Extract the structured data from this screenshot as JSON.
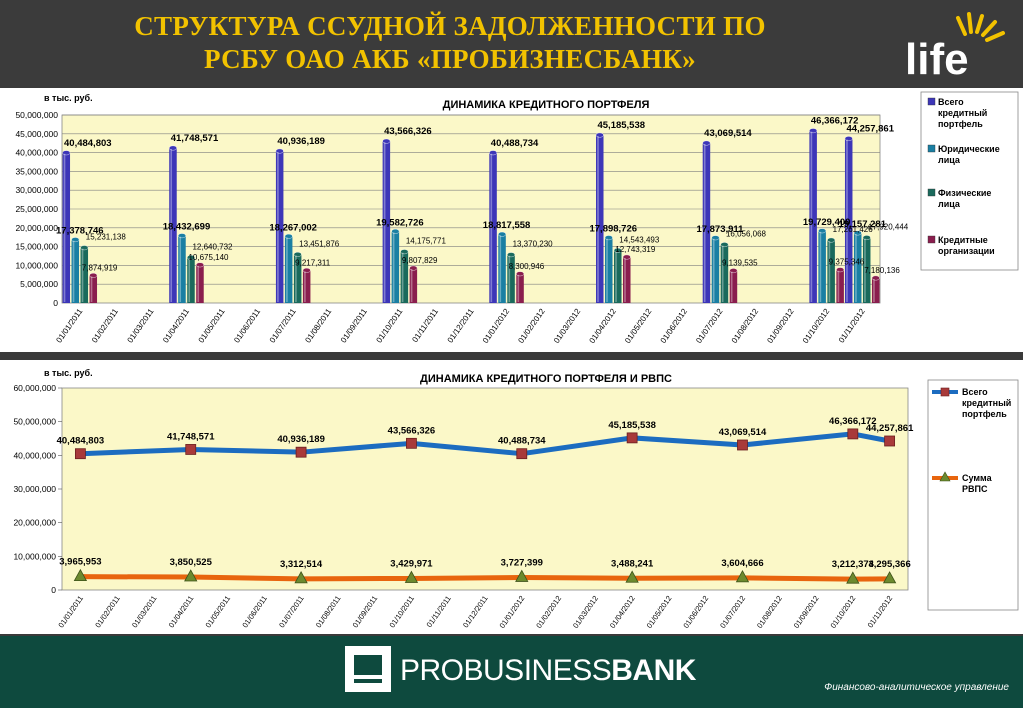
{
  "header": {
    "title_line1": "СТРУКТУРА ССУДНОЙ ЗАДОЛЖЕННОСТИ ПО",
    "title_line2": "РСБУ ОАО АКБ «ПРОБИЗНЕСБАНК»",
    "logo_text": "life"
  },
  "footer": {
    "brand_light": "PROBUSINESS",
    "brand_bold": "BANK",
    "department": "Финансово-аналитическое управление"
  },
  "colors": {
    "header_bg": "#3b3b3b",
    "title": "#f2c200",
    "footer_bg": "#0e4a3e",
    "plot_bg": "#fbf8c8",
    "series_total": "#3d36b8",
    "series_legal": "#1a7fa3",
    "series_individuals": "#1a6a5c",
    "series_credit_org": "#8a1e4e",
    "line_total": "#1c6cc0",
    "line_rvps": "#e8650e"
  },
  "chart_data": [
    {
      "type": "bar",
      "title": "ДИНАМИКА КРЕДИТНОГО ПОРТФЕЛЯ",
      "unit_label": "в тыс. руб.",
      "ylim": [
        0,
        50000000
      ],
      "yticks": [
        "0",
        "5,000,000",
        "10,000,000",
        "15,000,000",
        "20,000,000",
        "25,000,000",
        "30,000,000",
        "35,000,000",
        "40,000,000",
        "45,000,000",
        "50,000,000"
      ],
      "categories": [
        "01/01/2011",
        "01/02/2011",
        "01/03/2011",
        "01/04/2011",
        "01/05/2011",
        "01/06/2011",
        "01/07/2011",
        "01/08/2011",
        "01/09/2011",
        "01/10/2011",
        "01/11/2011",
        "01/12/2011",
        "01/01/2012",
        "01/02/2012",
        "01/03/2012",
        "01/04/2012",
        "01/05/2012",
        "01/06/2012",
        "01/07/2012",
        "01/08/2012",
        "01/09/2012",
        "01/10/2012",
        "01/11/2012"
      ],
      "grid": true,
      "legend": "right",
      "series": [
        {
          "name": "Всего кредитный портфель",
          "values": [
            40484803,
            null,
            null,
            41748571,
            null,
            null,
            40936189,
            null,
            null,
            43566326,
            null,
            null,
            40488734,
            null,
            null,
            45185538,
            null,
            null,
            43069514,
            null,
            null,
            46366172,
            44257861
          ],
          "labels": [
            "40,484,803",
            "",
            "",
            "41,748,571",
            "",
            "",
            "40,936,189",
            "",
            "",
            "43,566,326",
            "",
            "",
            "40,488,734",
            "",
            "",
            "45,185,538",
            "",
            "",
            "43,069,514",
            "",
            "",
            "46,366,172",
            "44,257,861"
          ]
        },
        {
          "name": "Юридические лица",
          "values": [
            17378746,
            null,
            null,
            18432699,
            null,
            null,
            18267002,
            null,
            null,
            19582726,
            null,
            null,
            18817558,
            null,
            null,
            17898726,
            null,
            null,
            17873911,
            null,
            null,
            19729400,
            19157281
          ],
          "labels": [
            "17,378,746",
            "",
            "",
            "18,432,699",
            "",
            "",
            "18,267,002",
            "",
            "",
            "19,582,726",
            "",
            "",
            "18,817,558",
            "",
            "",
            "17,898,726",
            "",
            "",
            "17,873,911",
            "",
            "",
            "19,729,400",
            "19,157,281"
          ]
        },
        {
          "name": "Физические лица",
          "values": [
            15231138,
            null,
            null,
            12640732,
            null,
            null,
            13451876,
            null,
            null,
            14175771,
            null,
            null,
            13370230,
            null,
            null,
            14543493,
            null,
            null,
            16056068,
            null,
            null,
            17261426,
            17920444
          ],
          "labels": [
            "15,231,138",
            "",
            "",
            "12,640,732",
            "",
            "",
            "13,451,876",
            "",
            "",
            "14,175,771",
            "",
            "",
            "13,370,230",
            "",
            "",
            "14,543,493",
            "",
            "",
            "16,056,068",
            "",
            "",
            "17,261,426",
            "17,920,444"
          ]
        },
        {
          "name": "Кредитные организации",
          "values": [
            7874919,
            null,
            null,
            10675140,
            null,
            null,
            9217311,
            null,
            null,
            9807829,
            null,
            null,
            8300946,
            null,
            null,
            12743319,
            null,
            null,
            9139535,
            null,
            null,
            9375346,
            7180136
          ],
          "labels": [
            "7,874,919",
            "",
            "",
            "10,675,140",
            "",
            "",
            "9,217,311",
            "",
            "",
            "9,807,829",
            "",
            "",
            "8,300,946",
            "",
            "",
            "12,743,319",
            "",
            "",
            "9,139,535",
            "",
            "",
            "9,375,346",
            "7,180,136"
          ]
        }
      ]
    },
    {
      "type": "line",
      "title": "ДИНАМИКА КРЕДИТНОГО ПОРТФЕЛЯ И РВПС",
      "unit_label": "в тыс. руб.",
      "ylim": [
        0,
        60000000
      ],
      "yticks": [
        "0",
        "10,000,000",
        "20,000,000",
        "30,000,000",
        "40,000,000",
        "50,000,000",
        "60,000,000"
      ],
      "categories": [
        "01/01/2011",
        "01/02/2011",
        "01/03/2011",
        "01/04/2011",
        "01/05/2011",
        "01/06/2011",
        "01/07/2011",
        "01/08/2011",
        "01/09/2011",
        "01/10/2011",
        "01/11/2011",
        "01/12/2011",
        "01/01/2012",
        "01/02/2012",
        "01/03/2012",
        "01/04/2012",
        "01/05/2012",
        "01/06/2012",
        "01/07/2012",
        "01/08/2012",
        "01/09/2012",
        "01/10/2012",
        "01/11/2012"
      ],
      "grid": false,
      "legend": "right",
      "series": [
        {
          "name": "Всего кредитный портфель",
          "values": [
            40484803,
            null,
            null,
            41748571,
            null,
            null,
            40936189,
            null,
            null,
            43566326,
            null,
            null,
            40488734,
            null,
            null,
            45185538,
            null,
            null,
            43069514,
            null,
            null,
            46366172,
            44257861
          ],
          "labels": [
            "40,484,803",
            "",
            "",
            "41,748,571",
            "",
            "",
            "40,936,189",
            "",
            "",
            "43,566,326",
            "",
            "",
            "40,488,734",
            "",
            "",
            "45,185,538",
            "",
            "",
            "43,069,514",
            "",
            "",
            "46,366,172",
            "44,257,861"
          ]
        },
        {
          "name": "Сумма РВПС",
          "values": [
            3965953,
            null,
            null,
            3850525,
            null,
            null,
            3312514,
            null,
            null,
            3429971,
            null,
            null,
            3727399,
            null,
            null,
            3488241,
            null,
            null,
            3604666,
            null,
            null,
            3212374,
            3295366
          ],
          "labels": [
            "3,965,953",
            "",
            "",
            "3,850,525",
            "",
            "",
            "3,312,514",
            "",
            "",
            "3,429,971",
            "",
            "",
            "3,727,399",
            "",
            "",
            "3,488,241",
            "",
            "",
            "3,604,666",
            "",
            "",
            "3,212,374",
            "3,295,366"
          ]
        }
      ]
    }
  ]
}
